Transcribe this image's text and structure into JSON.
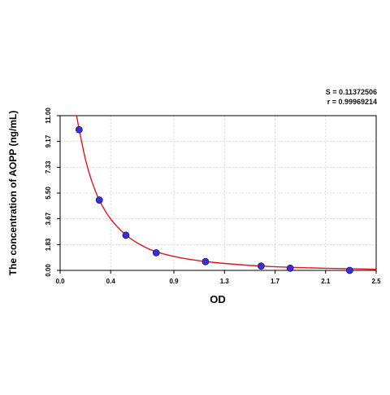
{
  "chart_data": {
    "type": "scatter",
    "title": "",
    "xlabel": "OD",
    "ylabel": "The concentration of AOPP (ng/mL)",
    "xlim": [
      0.0,
      2.5
    ],
    "ylim": [
      0.0,
      11.0
    ],
    "x_ticks": [
      "0.0",
      "0.4",
      "0.9",
      "1.3",
      "1.7",
      "2.1",
      "2.5"
    ],
    "y_ticks": [
      "0.00",
      "1.83",
      "3.67",
      "5.50",
      "7.33",
      "9.17",
      "11.00"
    ],
    "grid": true,
    "stats": {
      "s_label": "S = 0.11372506",
      "r_label": "r = 0.99969214"
    },
    "series": [
      {
        "points": [
          {
            "x": 0.15,
            "y": 10.0
          },
          {
            "x": 0.31,
            "y": 5.0
          },
          {
            "x": 0.52,
            "y": 2.5
          },
          {
            "x": 0.76,
            "y": 1.25
          },
          {
            "x": 1.15,
            "y": 0.625
          },
          {
            "x": 1.59,
            "y": 0.3125
          },
          {
            "x": 1.82,
            "y": 0.156
          },
          {
            "x": 2.29,
            "y": 0.0
          }
        ]
      }
    ],
    "fit_curve": {
      "color": "#e8141b",
      "points": [
        {
          "x": 0.13,
          "y": 11.0
        },
        {
          "x": 0.15,
          "y": 10.05
        },
        {
          "x": 0.2,
          "y": 7.9
        },
        {
          "x": 0.25,
          "y": 6.35
        },
        {
          "x": 0.31,
          "y": 5.0
        },
        {
          "x": 0.4,
          "y": 3.65
        },
        {
          "x": 0.52,
          "y": 2.52
        },
        {
          "x": 0.64,
          "y": 1.8
        },
        {
          "x": 0.76,
          "y": 1.32
        },
        {
          "x": 0.95,
          "y": 0.9
        },
        {
          "x": 1.15,
          "y": 0.63
        },
        {
          "x": 1.4,
          "y": 0.42
        },
        {
          "x": 1.59,
          "y": 0.31
        },
        {
          "x": 1.82,
          "y": 0.22
        },
        {
          "x": 2.1,
          "y": 0.15
        },
        {
          "x": 2.5,
          "y": 0.08
        }
      ]
    },
    "colors": {
      "point_fill": "#3a2fd6",
      "point_stroke": "#1a127a",
      "curve": "#e8141b",
      "grid": "#cfcfcf",
      "axis": "#000000"
    }
  }
}
